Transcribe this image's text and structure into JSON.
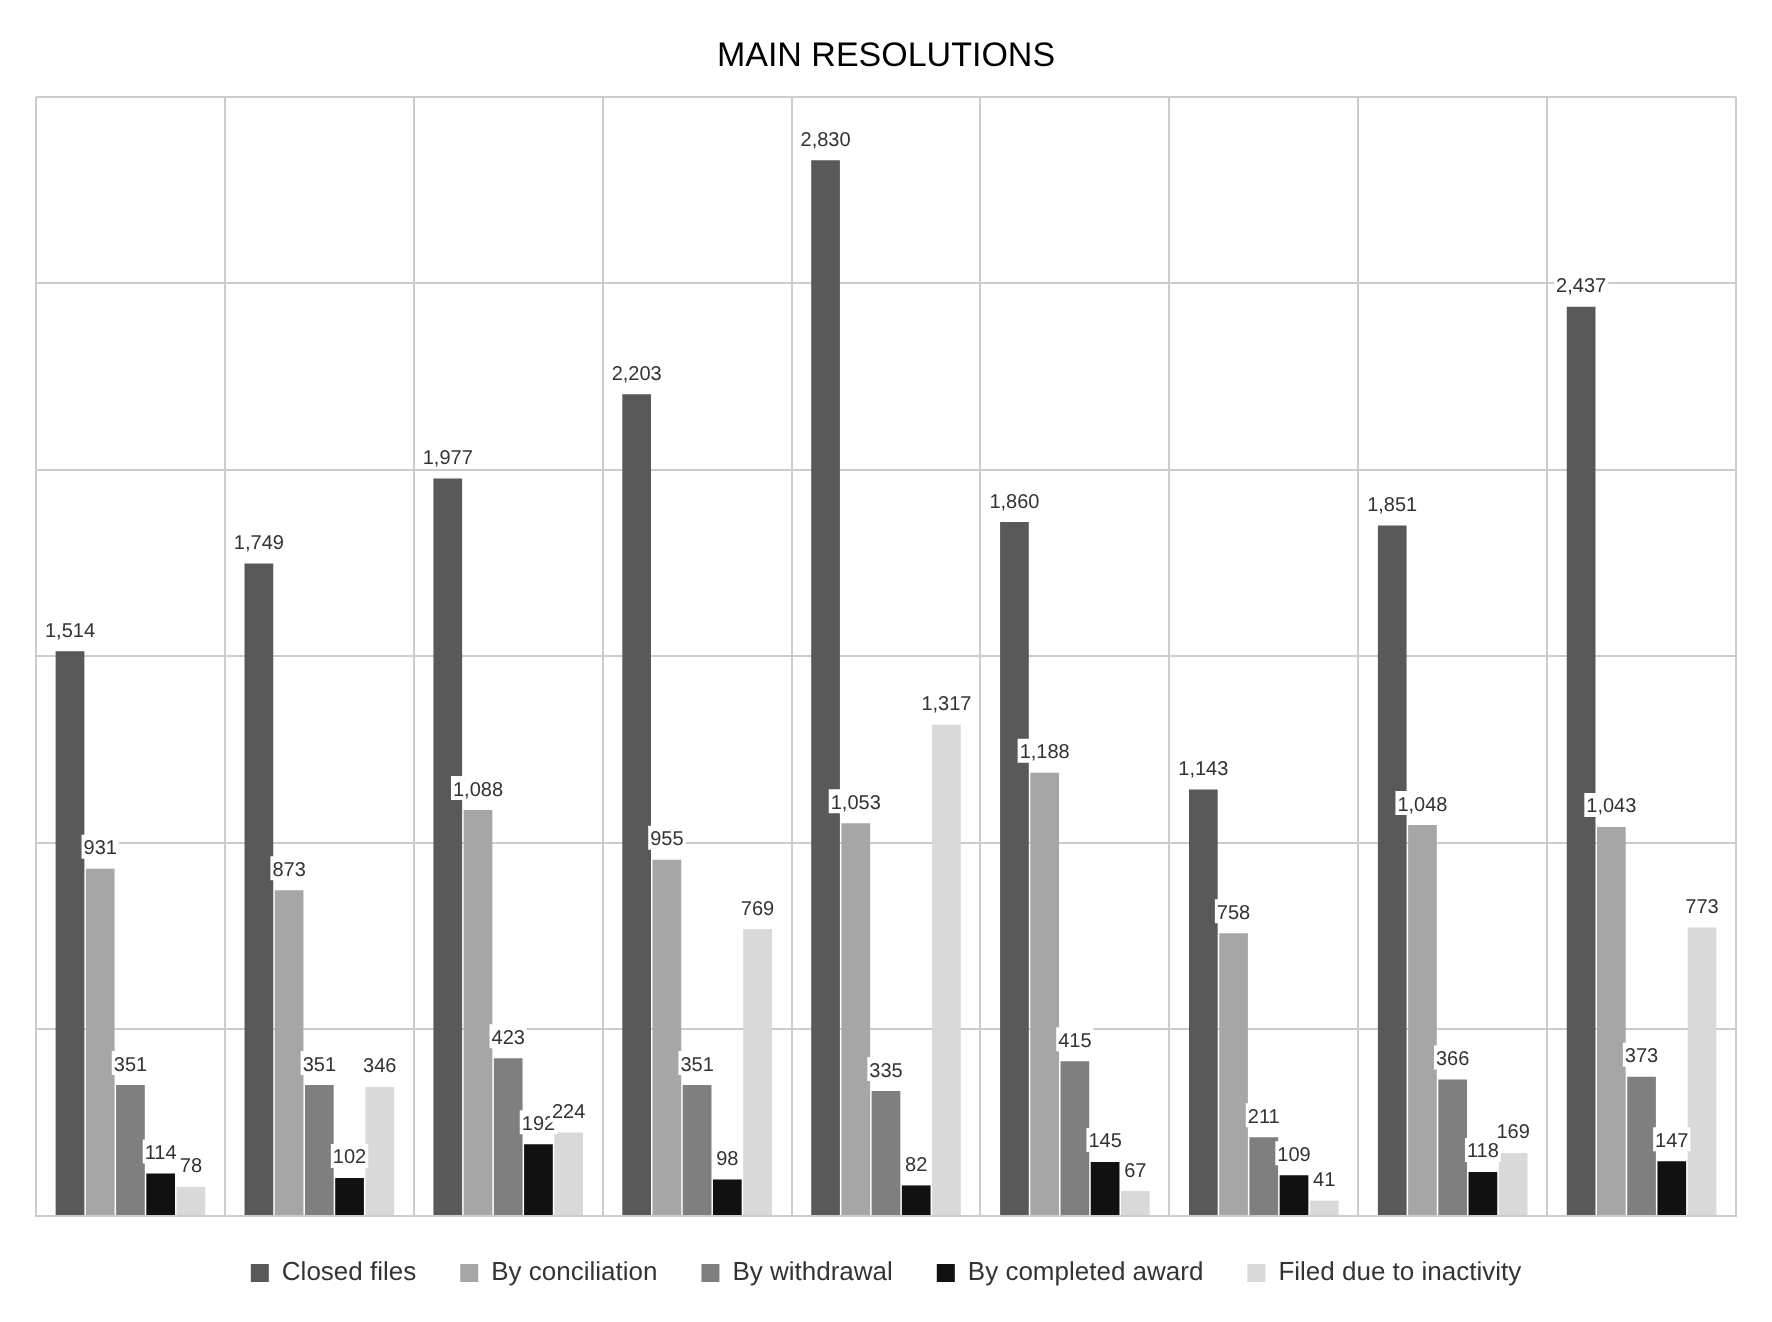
{
  "chart_data": {
    "type": "bar",
    "title": "MAIN RESOLUTIONS",
    "categories": [
      null,
      null,
      null,
      null,
      null,
      null,
      null,
      null,
      null
    ],
    "series": [
      {
        "name": "Closed files",
        "color": "#595959",
        "values": [
          1514,
          1749,
          1977,
          2203,
          2830,
          1860,
          1143,
          1851,
          2437
        ],
        "value_labels": [
          "1,514",
          "1,749",
          "1,977",
          "2,203",
          "2,830",
          "1,860",
          "1,143",
          "1,851",
          "2,437"
        ]
      },
      {
        "name": "By conciliation",
        "color": "#a6a6a6",
        "values": [
          931,
          873,
          1088,
          955,
          1053,
          1188,
          758,
          1048,
          1043
        ],
        "value_labels": [
          "931",
          "873",
          "1,088",
          "955",
          "1,053",
          "1,188",
          "758",
          "1,048",
          "1,043"
        ]
      },
      {
        "name": "By withdrawal",
        "color": "#7f7f7f",
        "values": [
          351,
          351,
          423,
          351,
          335,
          415,
          211,
          366,
          373
        ],
        "value_labels": [
          "351",
          "351",
          "423",
          "351",
          "335",
          "415",
          "211",
          "366",
          "373"
        ]
      },
      {
        "name": "By completed award",
        "color": "#111111",
        "values": [
          114,
          102,
          192,
          98,
          82,
          145,
          109,
          118,
          147
        ],
        "value_labels": [
          "114",
          "102",
          "192",
          "98",
          "82",
          "145",
          "109",
          "118",
          "147"
        ]
      },
      {
        "name": "Filed due to inactivity",
        "color": "#d9d9d9",
        "values": [
          78,
          346,
          224,
          769,
          1317,
          67,
          41,
          169,
          773
        ],
        "value_labels": [
          "78",
          "346",
          "224",
          "769",
          "1,317",
          "67",
          "41",
          "169",
          "773"
        ]
      }
    ],
    "ylim": [
      0,
      3000
    ],
    "yticks": [
      {
        "value": 0,
        "label": null
      },
      {
        "value": 500,
        "label": null
      },
      {
        "value": 1000,
        "label": null
      },
      {
        "value": 1500,
        "label": null
      },
      {
        "value": 2000,
        "label": null
      },
      {
        "value": 2500,
        "label": null
      },
      {
        "value": 3000,
        "label": null
      }
    ],
    "grid": true,
    "legend": "bottom",
    "tick_labels": false
  }
}
